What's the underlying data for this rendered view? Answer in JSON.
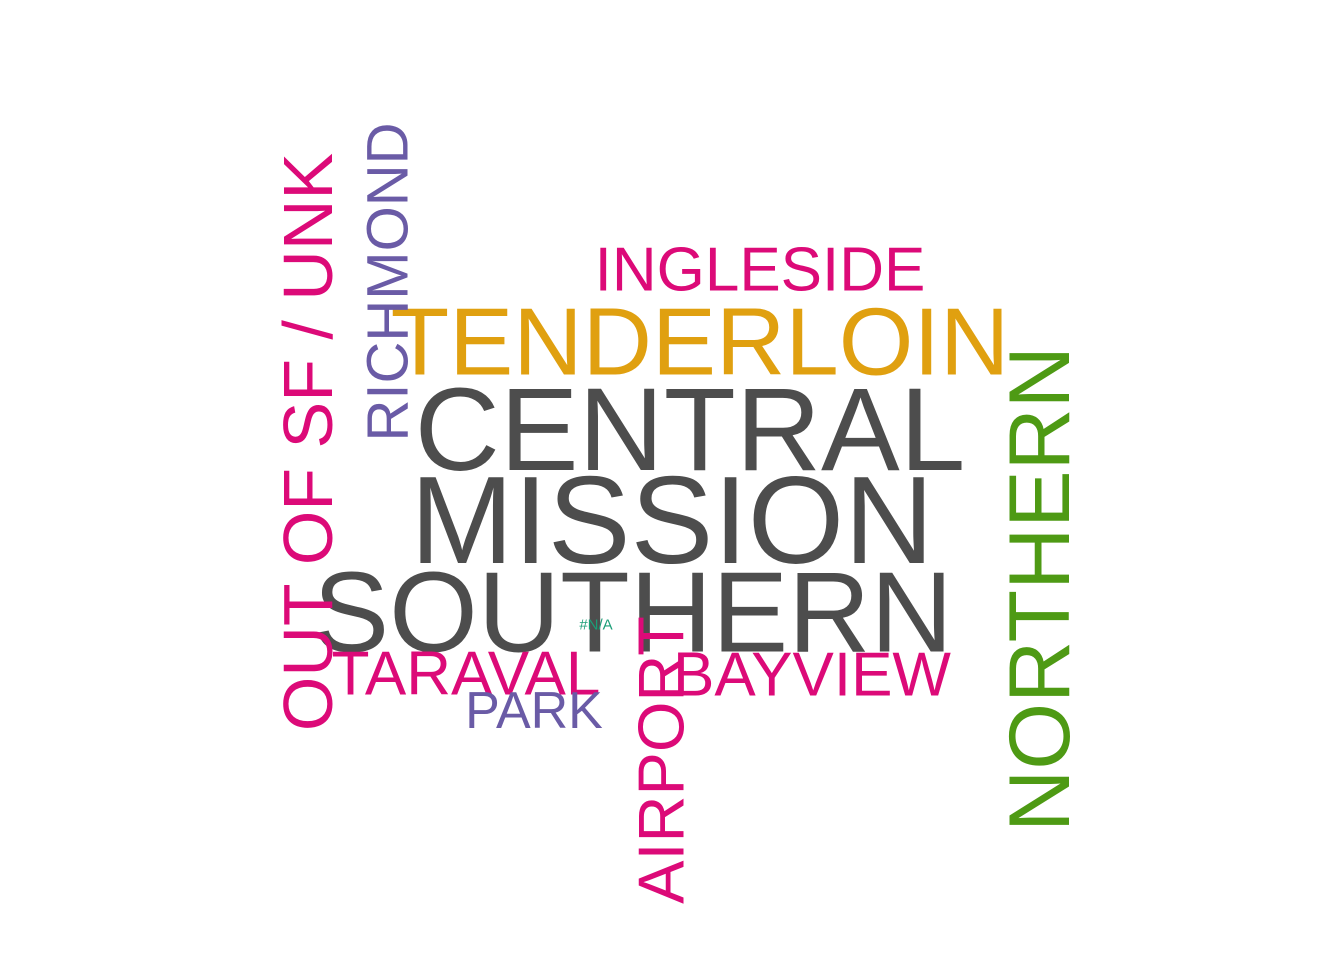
{
  "chart_data": {
    "type": "wordcloud",
    "words": [
      {
        "text": "MISSION",
        "weight": 100,
        "color": "#4d4d4d"
      },
      {
        "text": "CENTRAL",
        "weight": 96,
        "color": "#4d4d4d"
      },
      {
        "text": "SOUTHERN",
        "weight": 93,
        "color": "#4d4d4d"
      },
      {
        "text": "TENDERLOIN",
        "weight": 78,
        "color": "#e0a010"
      },
      {
        "text": "NORTHERN",
        "weight": 70,
        "color": "#4e9a14"
      },
      {
        "text": "OUT OF SF / UNK",
        "weight": 57,
        "color": "#dc0a78"
      },
      {
        "text": "AIRPORT",
        "weight": 53,
        "color": "#dc0a78"
      },
      {
        "text": "INGLESIDE",
        "weight": 51,
        "color": "#dc0a78"
      },
      {
        "text": "TARAVAL",
        "weight": 51,
        "color": "#dc0a78"
      },
      {
        "text": "BAYVIEW",
        "weight": 51,
        "color": "#dc0a78"
      },
      {
        "text": "RICHMOND",
        "weight": 47,
        "color": "#6a5ba6"
      },
      {
        "text": "PARK",
        "weight": 42,
        "color": "#6a5ba6"
      },
      {
        "text": "#N/A",
        "weight": 14,
        "color": "#1b9e77"
      }
    ]
  }
}
